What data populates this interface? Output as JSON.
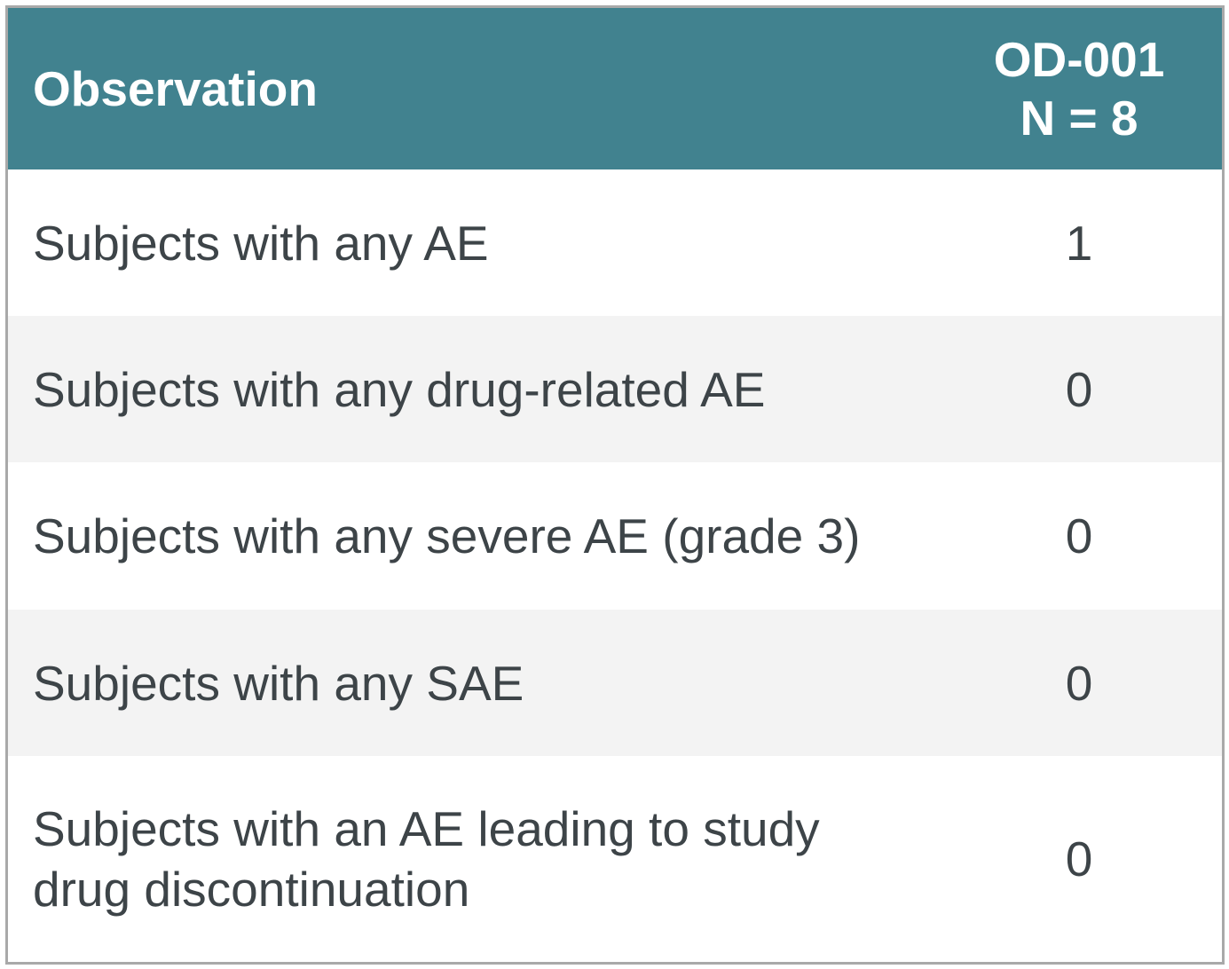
{
  "header": {
    "columns": [
      "Observation",
      [
        "OD-001",
        "N = 8"
      ]
    ]
  },
  "rows": [
    {
      "label": [
        "Subjects with any AE"
      ],
      "value": 1
    },
    {
      "label": [
        "Subjects with any drug-related AE"
      ],
      "value": 0
    },
    {
      "label": [
        "Subjects with any severe AE (grade 3)"
      ],
      "value": 0
    },
    {
      "label": [
        "Subjects with any SAE"
      ],
      "value": 0
    },
    {
      "label": [
        "Subjects with an AE leading to study",
        "drug discontinuation"
      ],
      "value": 0
    }
  ]
}
